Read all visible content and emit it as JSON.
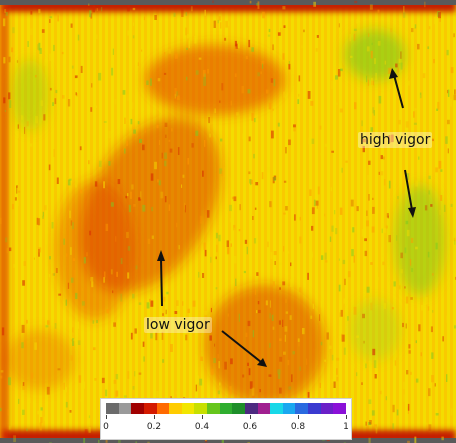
{
  "annotations": {
    "high_vigor": "high vigor",
    "low_vigor": "low vigor"
  },
  "legend": {
    "tick_labels": [
      "0",
      "0.2",
      "0.4",
      "0.6",
      "0.8",
      "1"
    ],
    "palette": [
      "#6b6b6b",
      "#9a9a9a",
      "#a00000",
      "#d41a00",
      "#ff6a00",
      "#ffcc00",
      "#f2e600",
      "#c8e000",
      "#66c61c",
      "#2fae2f",
      "#1e8f2a",
      "#4c2a80",
      "#a02090",
      "#18d8e8",
      "#1aa8f0",
      "#2a6ae0",
      "#3a3ad0",
      "#6a20c8",
      "#8a10d8"
    ]
  },
  "map_colors": {
    "low": "#d42000",
    "mid": "#ff9a00",
    "base": "#f4dc00",
    "high": "#7cc822",
    "border": "#5a5a5a"
  }
}
